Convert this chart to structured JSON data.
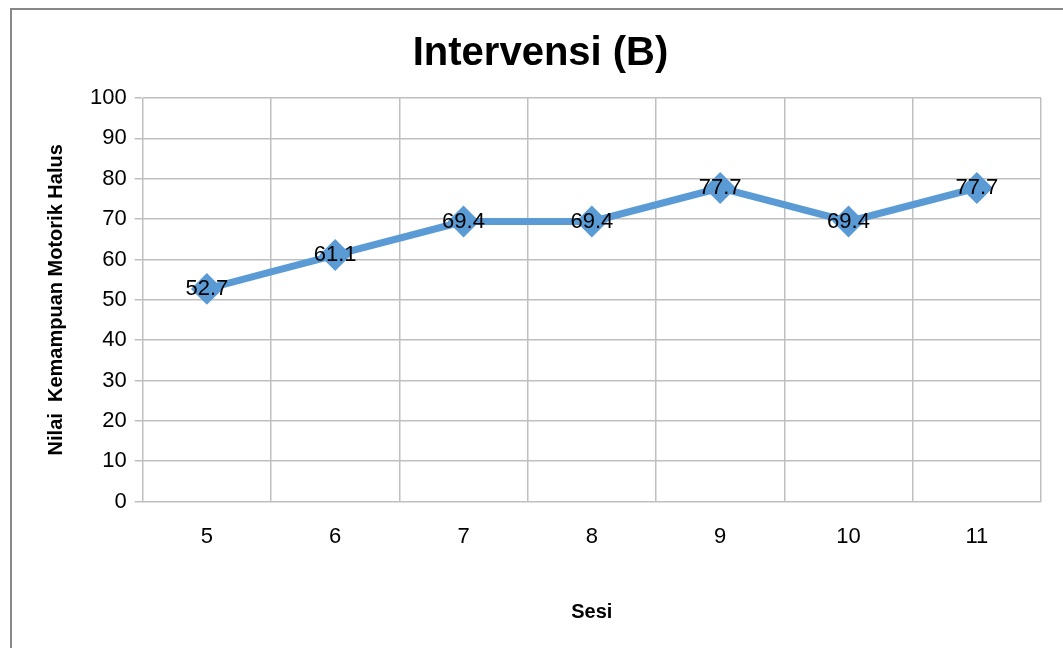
{
  "chart_data": {
    "type": "line",
    "title": "Intervensi (B)",
    "xlabel": "Sesi",
    "ylabel": "Nilai  Kemampuan Motorik Halus",
    "categories": [
      "5",
      "6",
      "7",
      "8",
      "9",
      "10",
      "11"
    ],
    "series": [
      {
        "color": "#5b9bd5",
        "values": [
          52.7,
          61.1,
          69.4,
          69.4,
          77.7,
          69.4,
          77.7
        ]
      }
    ],
    "ylim": [
      0,
      100
    ],
    "yticks": [
      0,
      10,
      20,
      30,
      40,
      50,
      60,
      70,
      80,
      90,
      100
    ],
    "grid": true,
    "legend": false,
    "marker": "diamond",
    "line_style": "solid",
    "data_labels": true
  }
}
